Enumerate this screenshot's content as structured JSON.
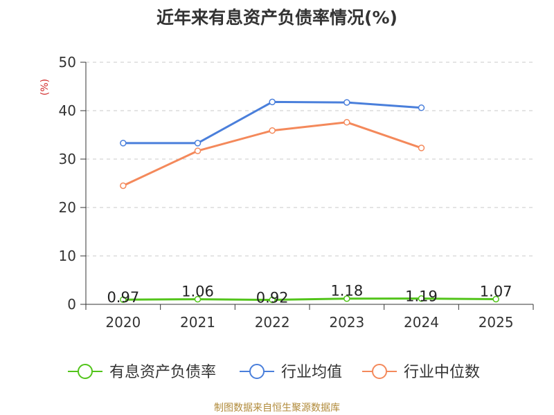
{
  "chart_data": {
    "type": "line",
    "title": "近年来有息资产负债率情况(%)",
    "ylabel": "(%)",
    "categories": [
      "2020",
      "2021",
      "2022",
      "2023",
      "2024",
      "2025"
    ],
    "ylim": [
      0,
      50
    ],
    "yticks": [
      0,
      10,
      20,
      30,
      40,
      50
    ],
    "grid": true,
    "legend_position": "bottom",
    "series": [
      {
        "name": "有息资产负债率",
        "color": "#52c41a",
        "values": [
          0.97,
          1.06,
          0.92,
          1.18,
          1.19,
          1.07
        ],
        "labels": [
          "0.97",
          "1.06",
          "0.92",
          "1.18",
          "1.19",
          "1.07"
        ]
      },
      {
        "name": "行业均值",
        "color": "#4a7fdb",
        "values": [
          33.3,
          33.3,
          41.8,
          41.7,
          40.6,
          null
        ]
      },
      {
        "name": "行业中位数",
        "color": "#f4895b",
        "values": [
          24.5,
          31.7,
          35.9,
          37.6,
          32.3,
          null
        ]
      }
    ]
  },
  "footer": {
    "source": "制图数据来自恒生聚源数据库"
  }
}
